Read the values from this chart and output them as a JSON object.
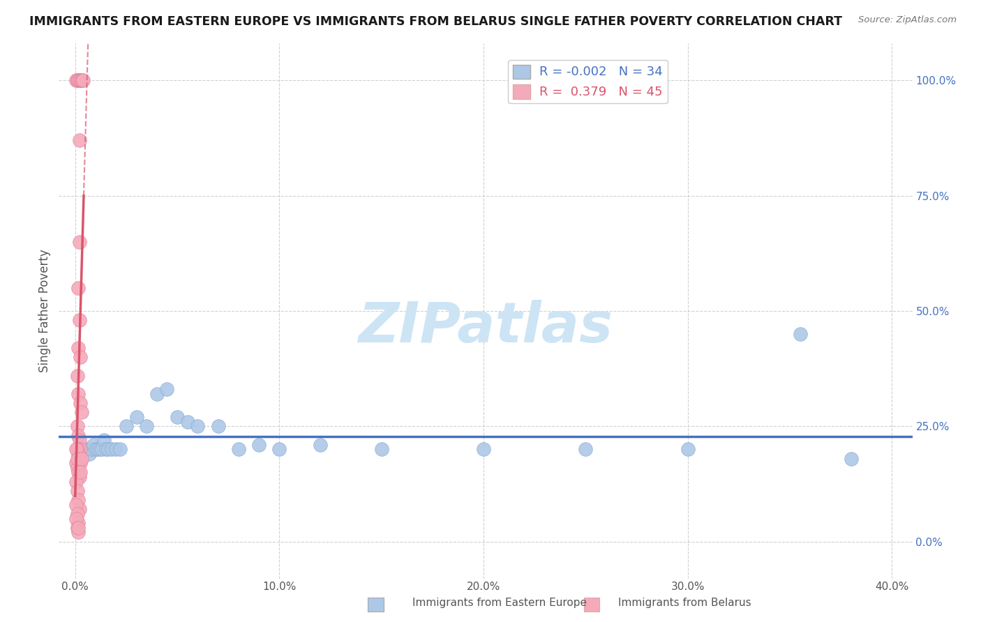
{
  "title": "IMMIGRANTS FROM EASTERN EUROPE VS IMMIGRANTS FROM BELARUS SINGLE FATHER POVERTY CORRELATION CHART",
  "source": "Source: ZipAtlas.com",
  "ylabel": "Single Father Poverty",
  "x_tick_vals": [
    0.0,
    10.0,
    20.0,
    30.0,
    40.0
  ],
  "y_tick_vals": [
    0.0,
    25.0,
    50.0,
    75.0,
    100.0
  ],
  "y_tick_labels_right": [
    "0.0%",
    "25.0%",
    "50.0%",
    "75.0%",
    "100.0%"
  ],
  "blue_R": "-0.002",
  "blue_N": "34",
  "pink_R": "0.379",
  "pink_N": "45",
  "blue_color": "#adc8e6",
  "pink_color": "#f5aaba",
  "blue_line_color": "#4472c4",
  "pink_line_color": "#d9546a",
  "blue_scatter": [
    [
      0.5,
      20.0
    ],
    [
      0.6,
      20.0
    ],
    [
      0.7,
      19.0
    ],
    [
      0.8,
      20.0
    ],
    [
      0.9,
      21.0
    ],
    [
      1.0,
      20.0
    ],
    [
      1.1,
      20.0
    ],
    [
      1.2,
      20.0
    ],
    [
      1.3,
      20.0
    ],
    [
      1.4,
      22.0
    ],
    [
      1.5,
      20.0
    ],
    [
      1.6,
      20.0
    ],
    [
      1.8,
      20.0
    ],
    [
      2.0,
      20.0
    ],
    [
      2.2,
      20.0
    ],
    [
      2.5,
      25.0
    ],
    [
      3.0,
      27.0
    ],
    [
      3.5,
      25.0
    ],
    [
      4.0,
      32.0
    ],
    [
      4.5,
      33.0
    ],
    [
      5.0,
      27.0
    ],
    [
      5.5,
      26.0
    ],
    [
      6.0,
      25.0
    ],
    [
      7.0,
      25.0
    ],
    [
      8.0,
      20.0
    ],
    [
      9.0,
      21.0
    ],
    [
      10.0,
      20.0
    ],
    [
      12.0,
      21.0
    ],
    [
      15.0,
      20.0
    ],
    [
      20.0,
      20.0
    ],
    [
      25.0,
      20.0
    ],
    [
      30.0,
      20.0
    ],
    [
      35.5,
      45.0
    ],
    [
      38.0,
      18.0
    ]
  ],
  "pink_scatter": [
    [
      0.05,
      100.0
    ],
    [
      0.1,
      100.0
    ],
    [
      0.15,
      100.0
    ],
    [
      0.2,
      100.0
    ],
    [
      0.25,
      100.0
    ],
    [
      0.3,
      100.0
    ],
    [
      0.35,
      100.0
    ],
    [
      0.4,
      100.0
    ],
    [
      0.2,
      87.0
    ],
    [
      0.2,
      65.0
    ],
    [
      0.15,
      55.0
    ],
    [
      0.2,
      48.0
    ],
    [
      0.15,
      42.0
    ],
    [
      0.25,
      40.0
    ],
    [
      0.1,
      36.0
    ],
    [
      0.15,
      32.0
    ],
    [
      0.25,
      30.0
    ],
    [
      0.3,
      28.0
    ],
    [
      0.1,
      25.0
    ],
    [
      0.15,
      23.0
    ],
    [
      0.2,
      22.0
    ],
    [
      0.25,
      20.0
    ],
    [
      0.1,
      20.0
    ],
    [
      0.15,
      19.0
    ],
    [
      0.2,
      18.0
    ],
    [
      0.25,
      17.0
    ],
    [
      0.05,
      17.0
    ],
    [
      0.1,
      16.0
    ],
    [
      0.15,
      15.0
    ],
    [
      0.2,
      14.0
    ],
    [
      0.05,
      13.0
    ],
    [
      0.1,
      11.0
    ],
    [
      0.15,
      9.0
    ],
    [
      0.2,
      7.0
    ],
    [
      0.05,
      8.0
    ],
    [
      0.1,
      6.0
    ],
    [
      0.15,
      4.0
    ],
    [
      0.05,
      5.0
    ],
    [
      0.1,
      3.0
    ],
    [
      0.15,
      2.0
    ],
    [
      0.05,
      20.0
    ],
    [
      0.1,
      18.0
    ],
    [
      0.15,
      3.0
    ],
    [
      0.3,
      18.0
    ],
    [
      0.25,
      15.0
    ]
  ],
  "watermark": "ZIPatlas",
  "watermark_color": "#cde4f5",
  "background_color": "#ffffff",
  "grid_color": "#d0d0d0",
  "legend_label_blue": "Immigrants from Eastern Europe",
  "legend_label_pink": "Immigrants from Belarus"
}
